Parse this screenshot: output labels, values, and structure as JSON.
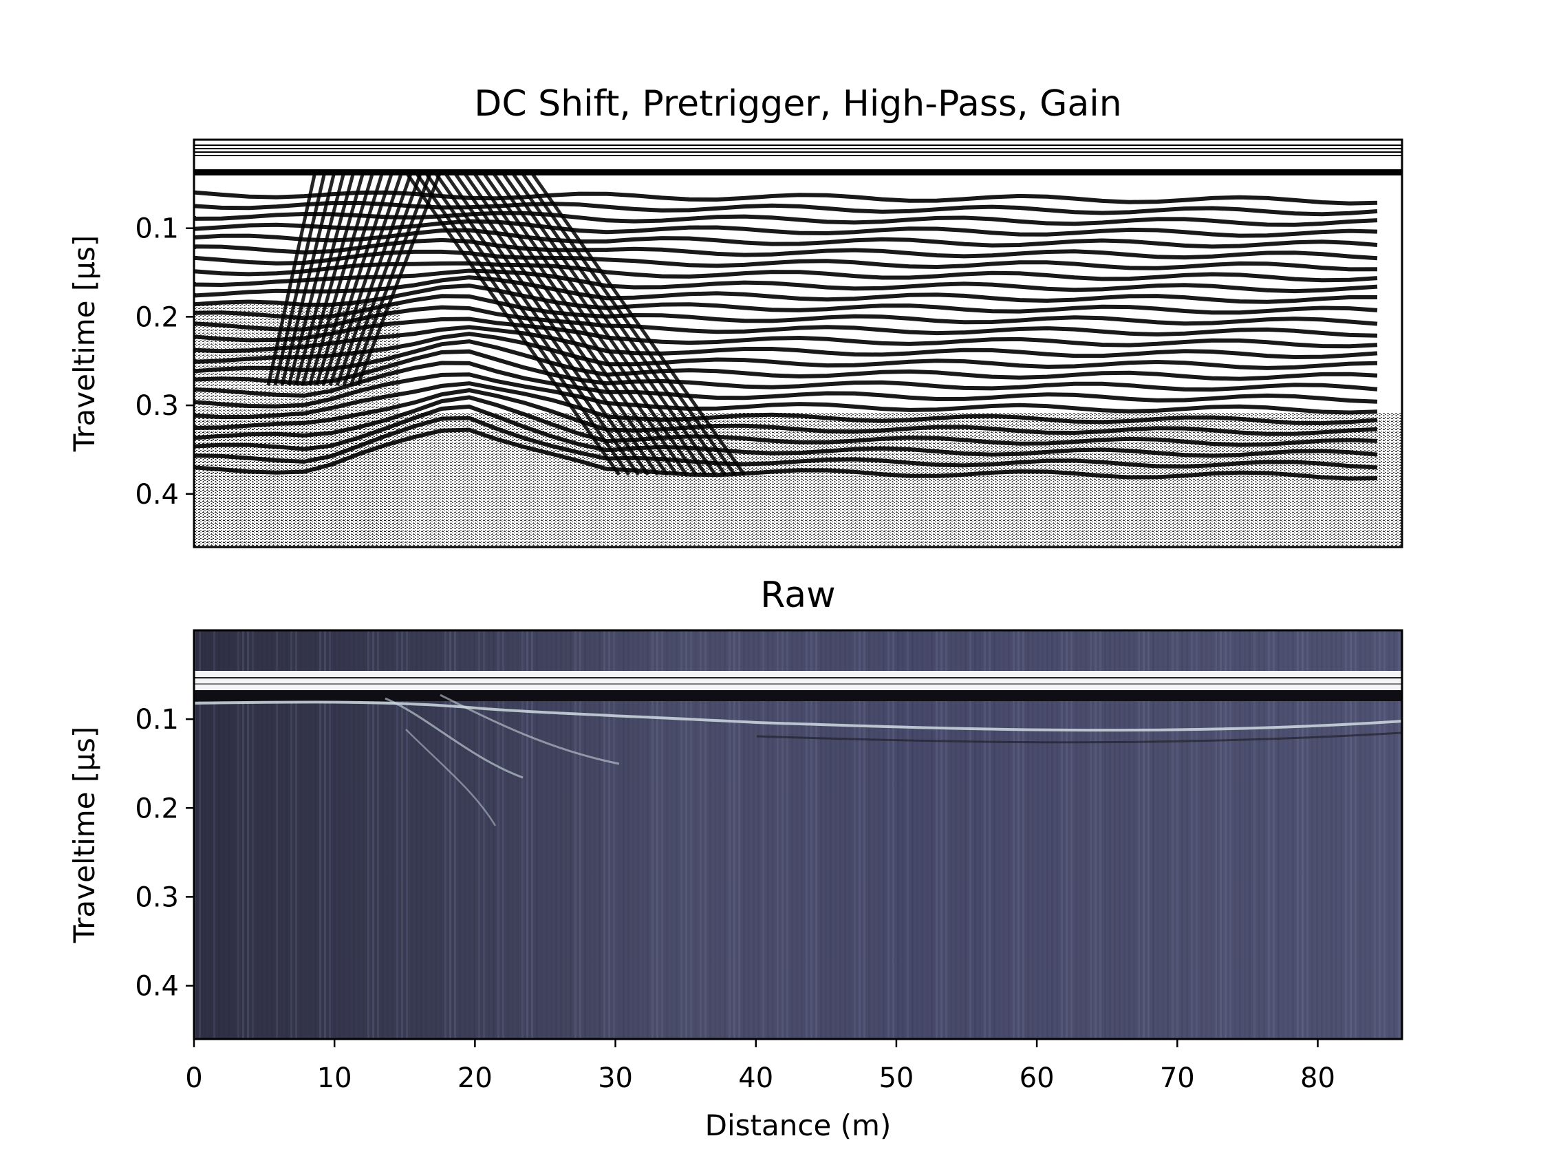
{
  "chart_data": [
    {
      "type": "heatmap",
      "title": "DC Shift, Pretrigger, High-Pass, Gain",
      "xlabel": "",
      "ylabel": "Traveltime [μs]",
      "xlim": [
        0,
        86
      ],
      "ylim": [
        0.46,
        0.0
      ],
      "yticks": [
        0.1,
        0.2,
        0.3,
        0.4
      ],
      "ytick_labels": [
        "0.1",
        "0.2",
        "0.3",
        "0.4"
      ],
      "xticks_shown": false,
      "colormap": "bone",
      "grid": false
    },
    {
      "type": "heatmap",
      "title": "Raw",
      "xlabel": "Distance (m)",
      "ylabel": "Traveltime [μs]",
      "xlim": [
        0,
        86
      ],
      "ylim": [
        0.46,
        0.0
      ],
      "xticks": [
        0,
        10,
        20,
        30,
        40,
        50,
        60,
        70,
        80
      ],
      "xtick_labels": [
        "0",
        "10",
        "20",
        "30",
        "40",
        "50",
        "60",
        "70",
        "80"
      ],
      "yticks": [
        0.1,
        0.2,
        0.3,
        0.4
      ],
      "ytick_labels": [
        "0.1",
        "0.2",
        "0.3",
        "0.4"
      ],
      "colormap": "bone",
      "grid": false
    }
  ]
}
